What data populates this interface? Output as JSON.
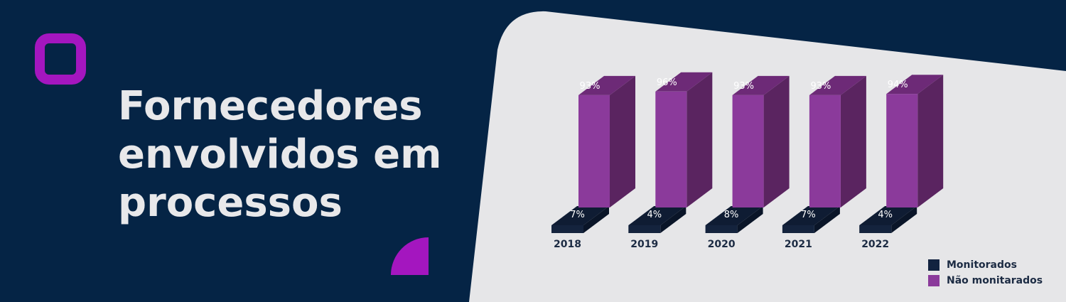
{
  "header": {
    "title_lines": [
      "Fornecedores",
      "envolvidos em",
      "processos"
    ]
  },
  "colors": {
    "background": "#052445",
    "panel": "#e6e6e8",
    "accent": "#a416bf",
    "monitored": "#122340",
    "not_monitored": "#8b3a9b"
  },
  "chart_data": {
    "type": "bar",
    "stacked": true,
    "categories": [
      "2018",
      "2019",
      "2020",
      "2021",
      "2022"
    ],
    "series": [
      {
        "name": "Monitorados",
        "values": [
          7,
          4,
          8,
          7,
          4
        ],
        "labels": [
          "7%",
          "4%",
          "8%",
          "7%",
          "4%"
        ]
      },
      {
        "name": "Não monitarados",
        "values": [
          93,
          96,
          93,
          93,
          94
        ],
        "labels": [
          "93%",
          "96%",
          "93%",
          "93%",
          "94%"
        ]
      }
    ],
    "unit": "%",
    "legend_position": "bottom-right"
  },
  "legend": {
    "items": [
      {
        "label": "Monitorados",
        "color": "#122340"
      },
      {
        "label": "Não monitarados",
        "color": "#8b3a9b"
      }
    ]
  }
}
